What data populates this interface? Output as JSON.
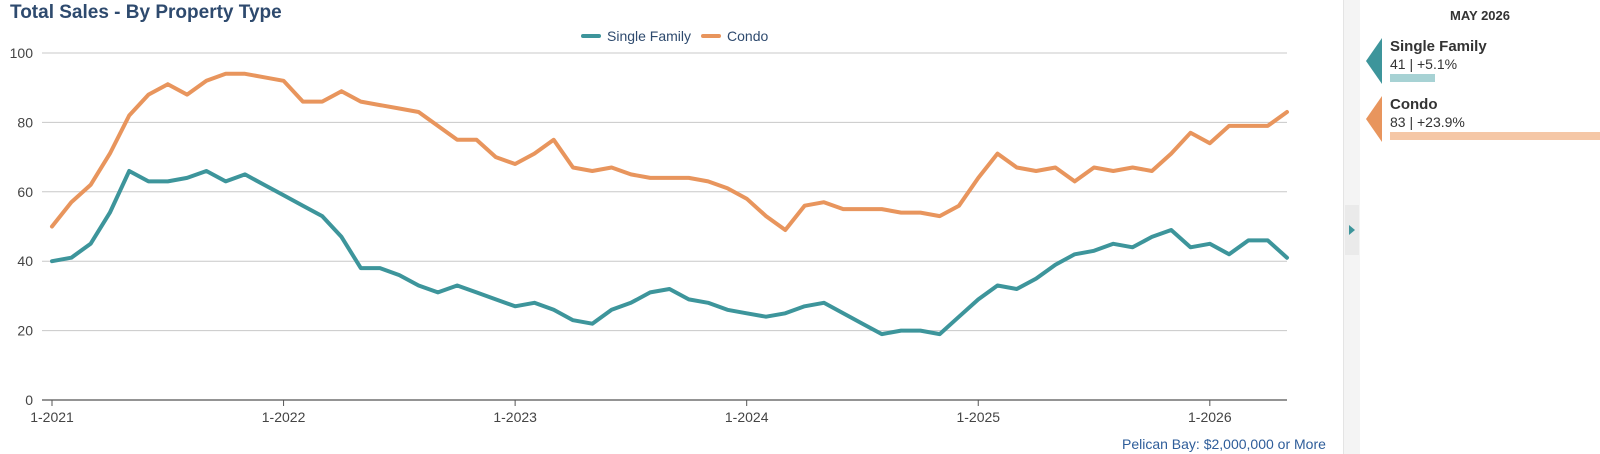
{
  "chart": {
    "title": "Total Sales - By Property Type",
    "footnote": "Pelican Bay: $2,000,000 or More"
  },
  "legend": [
    {
      "label": "Single Family",
      "color": "#3d959b"
    },
    {
      "label": "Condo",
      "color": "#e8955d"
    }
  ],
  "side_panel": {
    "header": "MAY 2026",
    "metrics": [
      {
        "name": "Single Family",
        "summary": "41 | +5.1%",
        "change_pct": 5.1,
        "color": "#3d959b",
        "bar_color": "#a7d2d4"
      },
      {
        "name": "Condo",
        "summary": "83 | +23.9%",
        "change_pct": 23.9,
        "color": "#e8955d",
        "bar_color": "#f5c7a6"
      }
    ]
  },
  "chart_data": {
    "type": "line",
    "ylim": [
      0,
      100
    ],
    "yticks": [
      0,
      20,
      40,
      60,
      80,
      100
    ],
    "xtick_labels": [
      "1-2021",
      "1-2022",
      "1-2023",
      "1-2024",
      "1-2025",
      "1-2026"
    ],
    "xtick_indices": [
      0,
      12,
      24,
      36,
      48,
      60
    ],
    "series": [
      {
        "name": "Single Family",
        "color": "#3d959b",
        "values": [
          40,
          41,
          45,
          54,
          66,
          63,
          63,
          64,
          66,
          63,
          65,
          62,
          59,
          56,
          53,
          47,
          38,
          38,
          36,
          33,
          31,
          33,
          31,
          29,
          27,
          28,
          26,
          23,
          22,
          26,
          28,
          31,
          32,
          29,
          28,
          26,
          25,
          24,
          25,
          27,
          28,
          25,
          22,
          19,
          20,
          20,
          19,
          24,
          29,
          33,
          32,
          35,
          39,
          42,
          43,
          45,
          44,
          47,
          49,
          44,
          45,
          42,
          46,
          46,
          41
        ]
      },
      {
        "name": "Condo",
        "color": "#e8955d",
        "values": [
          50,
          57,
          62,
          71,
          82,
          88,
          91,
          88,
          92,
          94,
          94,
          93,
          92,
          86,
          86,
          89,
          86,
          85,
          84,
          83,
          79,
          75,
          75,
          70,
          68,
          71,
          75,
          67,
          66,
          67,
          65,
          64,
          64,
          64,
          63,
          61,
          58,
          53,
          49,
          56,
          57,
          55,
          55,
          55,
          54,
          54,
          53,
          56,
          64,
          71,
          67,
          66,
          67,
          63,
          67,
          66,
          67,
          66,
          71,
          77,
          74,
          79,
          79,
          79,
          83
        ]
      }
    ]
  }
}
